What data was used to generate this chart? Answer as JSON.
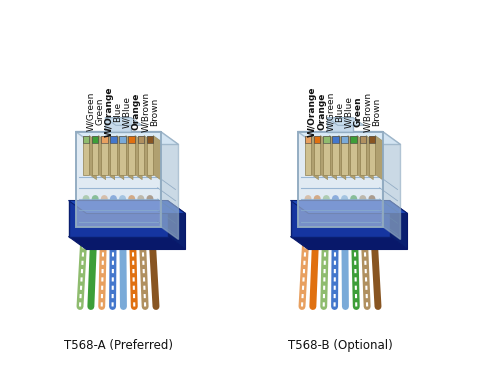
{
  "title_a": "T568-A (Preferred)",
  "title_b": "T568-B (Optional)",
  "labels_a": [
    "W/Green",
    "Green",
    "W/Orange",
    "Blue",
    "W/Blue",
    "Orange",
    "W/Brown",
    "Brown"
  ],
  "labels_b": [
    "W/Orange",
    "Orange",
    "W/Green",
    "Blue",
    "W/Blue",
    "Green",
    "W/Brown",
    "Brown"
  ],
  "wire_colors_a": [
    "#8fbc6f",
    "#3d9e38",
    "#e8a060",
    "#4477cc",
    "#7aaad8",
    "#e07010",
    "#b09060",
    "#885522"
  ],
  "wire_colors_b": [
    "#e8a060",
    "#e07010",
    "#8fbc6f",
    "#4477cc",
    "#7aaad8",
    "#3d9e38",
    "#b09060",
    "#885522"
  ],
  "stripe_colors_a": [
    "#ffffff",
    "#3d9e38",
    "#ffffff",
    "#ffffff",
    "#4477cc",
    "#ffffff",
    "#ffffff",
    "#885522"
  ],
  "stripe_colors_b": [
    "#ffffff",
    "#e07010",
    "#ffffff",
    "#ffffff",
    "#4477cc",
    "#ffffff",
    "#ffffff",
    "#885522"
  ],
  "bold_labels_a": [
    0,
    0,
    1,
    0,
    0,
    1,
    0,
    0
  ],
  "bold_labels_b": [
    1,
    1,
    0,
    0,
    0,
    1,
    0,
    0
  ],
  "connector_blue": "#1535a0",
  "connector_blue_dark": "#0a1f70",
  "connector_blue_darker": "#08186a",
  "pin_color": "#cec090",
  "pin_color_dark": "#b0a070",
  "pin_edge": "#908050",
  "bg_color": "#ffffff",
  "body_face": "#c5d8e8",
  "body_edge": "#90aac0",
  "label_fontsize": 6.5,
  "title_fontsize": 8.5
}
